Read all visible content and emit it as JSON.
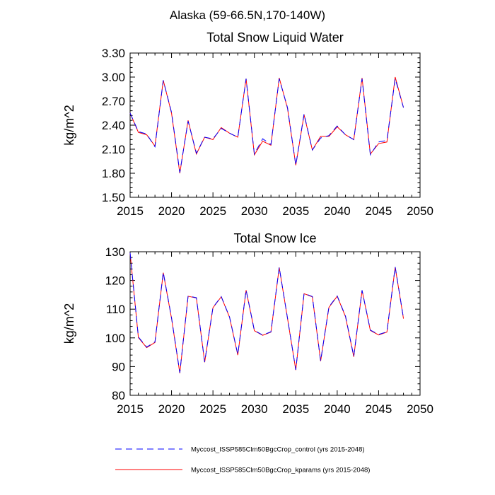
{
  "figure": {
    "title": "Alaska (59-66.5N,170-140W)"
  },
  "chart_data": [
    {
      "type": "line",
      "title": "Total Snow Liquid Water",
      "xlabel": "",
      "ylabel": "kg/m^2",
      "xlim": [
        2015,
        2050
      ],
      "ylim": [
        1.5,
        3.3
      ],
      "xticks": [
        "2015",
        "2020",
        "2025",
        "2030",
        "2035",
        "2040",
        "2045",
        "2050"
      ],
      "yticks": [
        "1.50",
        "1.80",
        "2.10",
        "2.40",
        "2.70",
        "3.00",
        "3.30"
      ],
      "grid": false,
      "x": [
        2015,
        2016,
        2017,
        2018,
        2019,
        2020,
        2021,
        2022,
        2023,
        2024,
        2025,
        2026,
        2027,
        2028,
        2029,
        2030,
        2031,
        2032,
        2033,
        2034,
        2035,
        2036,
        2037,
        2038,
        2039,
        2040,
        2041,
        2042,
        2043,
        2044,
        2045,
        2046,
        2047,
        2048
      ],
      "series": [
        {
          "name": "Myccost_ISSP585Clm50BgcCrop_control (yrs 2015-2048)",
          "color": "#0000ff",
          "dash": "dashed",
          "values": [
            2.55,
            2.32,
            2.29,
            2.13,
            2.96,
            2.56,
            1.81,
            2.45,
            2.05,
            2.25,
            2.23,
            2.36,
            2.3,
            2.25,
            2.98,
            2.04,
            2.23,
            2.16,
            2.98,
            2.62,
            1.9,
            2.54,
            2.09,
            2.24,
            2.27,
            2.39,
            2.28,
            2.22,
            2.98,
            2.03,
            2.19,
            2.21,
            2.98,
            2.62
          ]
        },
        {
          "name": "Myccost_ISSP585Clm50BgcCrop_kparams (yrs 2015-2048)",
          "color": "#ff0000",
          "dash": "solid",
          "values": [
            2.55,
            2.31,
            2.28,
            2.14,
            2.96,
            2.55,
            1.8,
            2.46,
            2.04,
            2.25,
            2.22,
            2.37,
            2.3,
            2.25,
            2.98,
            2.03,
            2.2,
            2.15,
            2.99,
            2.61,
            1.9,
            2.53,
            2.09,
            2.26,
            2.26,
            2.38,
            2.28,
            2.22,
            2.99,
            2.04,
            2.17,
            2.19,
            3.0,
            2.62
          ]
        }
      ]
    },
    {
      "type": "line",
      "title": "Total Snow Ice",
      "xlabel": "",
      "ylabel": "kg/m^2",
      "xlim": [
        2015,
        2050
      ],
      "ylim": [
        80,
        130
      ],
      "xticks": [
        "2015",
        "2020",
        "2025",
        "2030",
        "2035",
        "2040",
        "2045",
        "2050"
      ],
      "yticks": [
        "80",
        "90",
        "100",
        "110",
        "120",
        "130"
      ],
      "grid": false,
      "x": [
        2015,
        2016,
        2017,
        2018,
        2019,
        2020,
        2021,
        2022,
        2023,
        2024,
        2025,
        2026,
        2027,
        2028,
        2029,
        2030,
        2031,
        2032,
        2033,
        2034,
        2035,
        2036,
        2037,
        2038,
        2039,
        2040,
        2041,
        2042,
        2043,
        2044,
        2045,
        2046,
        2047,
        2048
      ],
      "series": [
        {
          "name": "Myccost_ISSP585Clm50BgcCrop_control (yrs 2015-2048)",
          "color": "#0000ff",
          "dash": "dashed",
          "values": [
            129.6,
            100.3,
            96.8,
            98.6,
            122.9,
            107.0,
            87.9,
            114.6,
            114.0,
            91.6,
            110.6,
            114.4,
            107.3,
            94.2,
            116.7,
            102.6,
            101.0,
            102.1,
            124.6,
            106.9,
            88.9,
            115.5,
            114.4,
            92.0,
            110.8,
            114.6,
            107.6,
            93.6,
            116.6,
            102.7,
            101.2,
            102.1,
            124.8,
            106.9
          ]
        },
        {
          "name": "Myccost_ISSP585Clm50BgcCrop_kparams (yrs 2015-2048)",
          "color": "#ff0000",
          "dash": "solid",
          "values": [
            129.5,
            100.1,
            96.6,
            98.4,
            122.7,
            106.8,
            87.7,
            114.5,
            113.9,
            91.5,
            110.5,
            114.3,
            107.2,
            94.0,
            116.6,
            102.5,
            100.9,
            102.0,
            124.5,
            106.8,
            88.8,
            115.4,
            114.3,
            91.9,
            110.6,
            114.5,
            107.4,
            93.4,
            116.5,
            102.6,
            101.0,
            102.0,
            124.6,
            106.7
          ]
        }
      ]
    }
  ],
  "legend": {
    "placement": "bottom",
    "entries": [
      {
        "label": "Myccost_ISSP585Clm50BgcCrop_control (yrs 2015-2048)",
        "color": "#0000ff",
        "dash": "dashed"
      },
      {
        "label": "Myccost_ISSP585Clm50BgcCrop_kparams (yrs 2015-2048)",
        "color": "#ff0000",
        "dash": "solid"
      }
    ]
  }
}
